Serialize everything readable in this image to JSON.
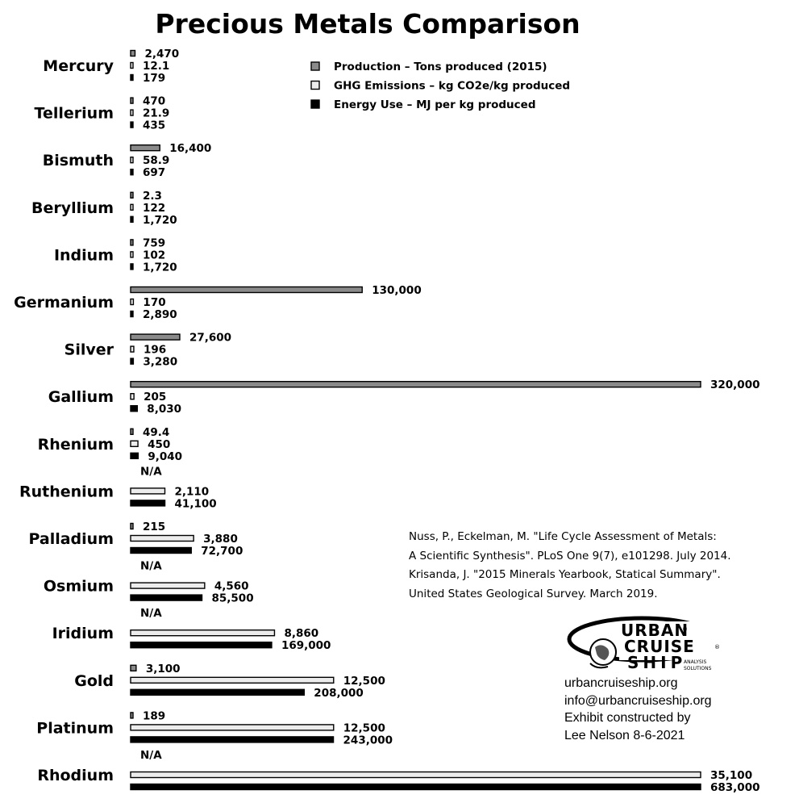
{
  "chart_data": {
    "type": "bar",
    "orientation": "horizontal",
    "title": "Precious Metals Comparison",
    "categories": [
      "Mercury",
      "Tellerium",
      "Bismuth",
      "Beryllium",
      "Indium",
      "Germanium",
      "Silver",
      "Gallium",
      "Rhenium",
      "Ruthenium",
      "Palladium",
      "Osmium",
      "Iridium",
      "Gold",
      "Platinum",
      "Rhodium"
    ],
    "series": [
      {
        "name": "Production – Tons produced (2015)",
        "color": "#8a8a8a",
        "values": [
          2470,
          470,
          16400,
          2.3,
          759,
          130000,
          27600,
          320000,
          49.4,
          null,
          215,
          null,
          null,
          3100,
          189,
          null
        ],
        "labels": [
          "2,470",
          "470",
          "16,400",
          "2.3",
          "759",
          "130,000",
          "27,600",
          "320,000",
          "49.4",
          "N/A",
          "215",
          "N/A",
          "N/A",
          "3,100",
          "189",
          "N/A"
        ],
        "scale_max": 320000
      },
      {
        "name": "GHG Emissions – kg CO2e/kg produced",
        "color": "#ececec",
        "values": [
          12.1,
          21.9,
          58.9,
          122,
          102,
          170,
          196,
          205,
          450,
          2110,
          3880,
          4560,
          8860,
          12500,
          12500,
          35100
        ],
        "labels": [
          "12.1",
          "21.9",
          "58.9",
          "122",
          "102",
          "170",
          "196",
          "205",
          "450",
          "2,110",
          "3,880",
          "4,560",
          "8,860",
          "12,500",
          "12,500",
          "35,100"
        ],
        "scale_max": 35100
      },
      {
        "name": "Energy Use – MJ per kg produced",
        "color": "#000000",
        "values": [
          179,
          435,
          697,
          1720,
          1720,
          2890,
          3280,
          8030,
          9040,
          41100,
          72700,
          85500,
          169000,
          208000,
          243000,
          683000
        ],
        "labels": [
          "179",
          "435",
          "697",
          "1,720",
          "1,720",
          "2,890",
          "3,280",
          "8,030",
          "9,040",
          "41,100",
          "72,700",
          "85,500",
          "169,000",
          "208,000",
          "243,000",
          "683,000"
        ],
        "scale_max": 683000
      }
    ],
    "legend_position": "top-center",
    "grid": false
  },
  "source_text": [
    "Nuss, P., Eckelman, M. \"Life Cycle Assessment of Metals:",
    "A Scientific Synthesis\". PLoS One 9(7), e101298. July 2014.",
    "Krisanda, J. \"2015 Minerals Yearbook, Statical Summary\".",
    "United States Geological Survey. March 2019."
  ],
  "logo": {
    "line1": "URBAN",
    "line2": "CRUISE",
    "line3": "SHIP",
    "tagline1": "ANALYSIS",
    "tagline2": "SOLUTIONS",
    "registered": "®"
  },
  "contact": {
    "website": "urbancruiseship.org",
    "email": "info@urbancruiseship.org",
    "credit_line1": "Exhibit constructed by",
    "credit_line2": "Lee Nelson 8-6-2021"
  }
}
